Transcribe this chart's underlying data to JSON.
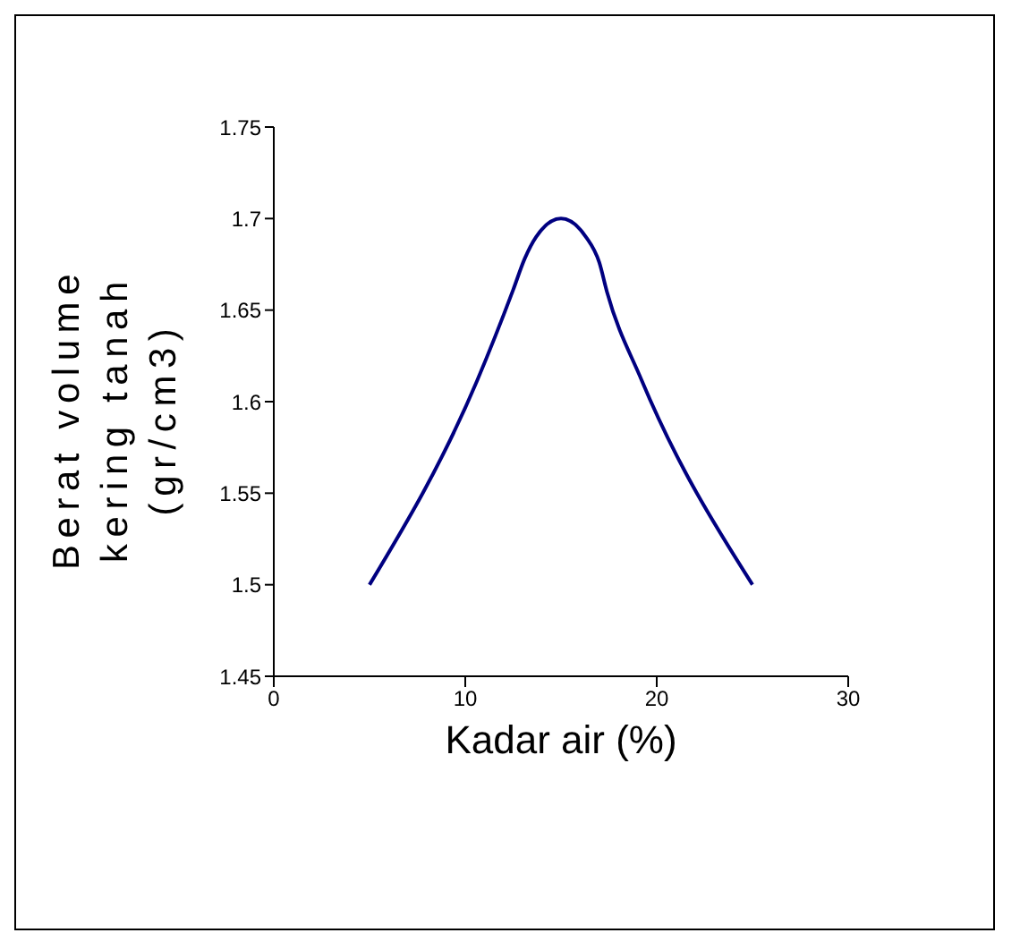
{
  "chart_data": {
    "type": "line",
    "xlabel": "Kadar air (%)",
    "ylabel": "Berat volume kering tanah (gr/cm3)",
    "x": [
      5,
      10.6,
      12.5,
      13.1,
      13.7,
      15,
      16.3,
      17,
      17.4,
      19.2,
      25
    ],
    "series": [
      {
        "color": "#000080",
        "values": [
          1.5,
          1.611,
          1.661,
          1.678,
          1.69,
          1.7,
          1.69,
          1.676,
          1.66,
          1.612,
          1.5
        ]
      }
    ],
    "xlim": [
      0,
      30
    ],
    "xticks": [
      0,
      10,
      20,
      30
    ],
    "ylim": [
      1.45,
      1.75
    ],
    "yticks": [
      1.45,
      1.5,
      1.55,
      1.6,
      1.65,
      1.7,
      1.75
    ],
    "grid": false,
    "legend": false,
    "marker": "none",
    "line_style": "solid"
  }
}
